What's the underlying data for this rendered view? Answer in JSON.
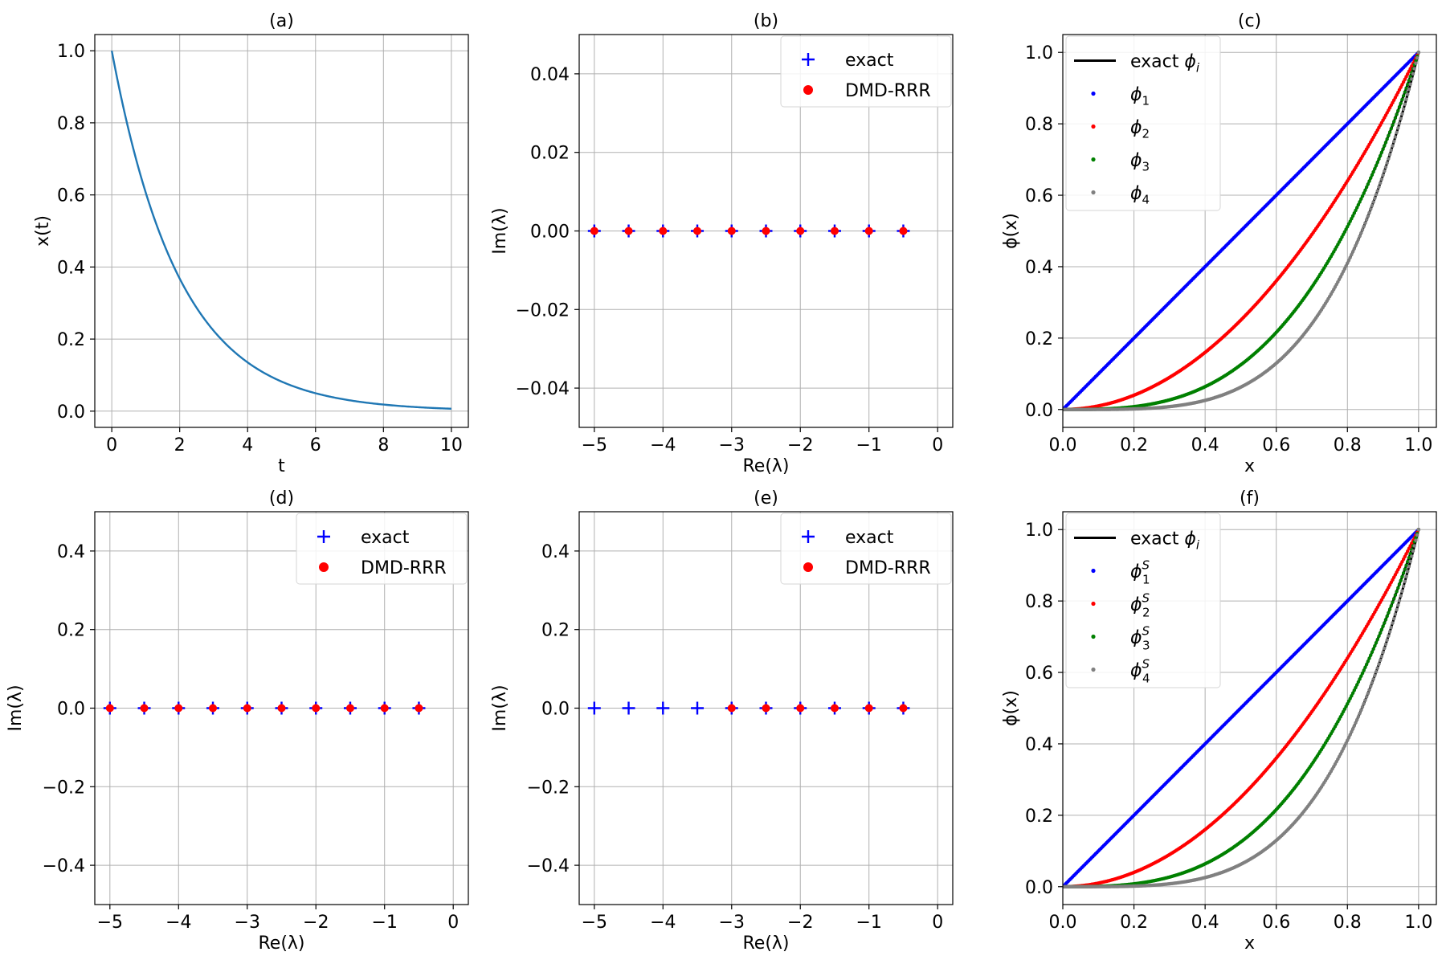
{
  "chart_data": [
    {
      "panel": "a",
      "type": "line",
      "title": "(a)",
      "xlabel": "t",
      "ylabel": "x(t)",
      "xlim": [
        -0.5,
        10.5
      ],
      "ylim": [
        -0.045,
        1.045
      ],
      "xticks": [
        0,
        2,
        4,
        6,
        8,
        10
      ],
      "xtick_labels": [
        "0",
        "2",
        "4",
        "6",
        "8",
        "10"
      ],
      "yticks": [
        0.0,
        0.2,
        0.4,
        0.6,
        0.8,
        1.0
      ],
      "ytick_labels": [
        "0.0",
        "0.2",
        "0.4",
        "0.6",
        "0.8",
        "1.0"
      ],
      "series": [
        {
          "name": "x(t)",
          "function": "exp(-t/2)",
          "x_range": [
            0,
            10
          ],
          "color": "#1f77b4"
        }
      ],
      "grid": true
    },
    {
      "panel": "b",
      "type": "scatter",
      "title": "(b)",
      "xlabel": "Re(λ)",
      "ylabel": "Im(λ)",
      "xlim": [
        -5.22,
        0.22
      ],
      "ylim": [
        -0.05,
        0.05
      ],
      "xticks": [
        -5,
        -4,
        -3,
        -2,
        -1,
        0
      ],
      "xtick_labels": [
        "−5",
        "−4",
        "−3",
        "−2",
        "−1",
        "0"
      ],
      "yticks": [
        -0.04,
        -0.02,
        0.0,
        0.02,
        0.04
      ],
      "ytick_labels": [
        "−0.04",
        "−0.02",
        "0.00",
        "0.02",
        "0.04"
      ],
      "series": [
        {
          "name": "exact",
          "marker": "plus",
          "color": "#0000ff",
          "x": [
            -5,
            -4.5,
            -4,
            -3.5,
            -3,
            -2.5,
            -2,
            -1.5,
            -1,
            -0.5
          ],
          "y": [
            0,
            0,
            0,
            0,
            0,
            0,
            0,
            0,
            0,
            0
          ]
        },
        {
          "name": "DMD-RRR",
          "marker": "dot",
          "color": "#ff0000",
          "x": [
            -5,
            -4.5,
            -4,
            -3.5,
            -3,
            -2.5,
            -2,
            -1.5,
            -1,
            -0.5
          ],
          "y": [
            0,
            0,
            0,
            0,
            0,
            0,
            0,
            0,
            0,
            0
          ]
        }
      ],
      "legend": [
        {
          "label": "exact",
          "marker": "plus",
          "color": "#0000ff"
        },
        {
          "label": "DMD-RRR",
          "marker": "dot",
          "color": "#ff0000"
        }
      ],
      "legend_position": "top-right",
      "grid": true
    },
    {
      "panel": "c",
      "type": "line",
      "title": "(c)",
      "xlabel": "x",
      "ylabel": "ϕ(x)",
      "xlim": [
        0.0,
        1.05
      ],
      "ylim": [
        -0.05,
        1.05
      ],
      "xticks": [
        0.0,
        0.2,
        0.4,
        0.6,
        0.8,
        1.0
      ],
      "xtick_labels": [
        "0.0",
        "0.2",
        "0.4",
        "0.6",
        "0.8",
        "1.0"
      ],
      "yticks": [
        0.0,
        0.2,
        0.4,
        0.6,
        0.8,
        1.0
      ],
      "ytick_labels": [
        "0.0",
        "0.2",
        "0.4",
        "0.6",
        "0.8",
        "1.0"
      ],
      "series": [
        {
          "name": "exact ϕ1",
          "function": "x",
          "color": "#000000",
          "style": "line"
        },
        {
          "name": "exact ϕ2",
          "function": "x^2",
          "color": "#000000",
          "style": "line"
        },
        {
          "name": "exact ϕ3",
          "function": "x^3",
          "color": "#000000",
          "style": "line"
        },
        {
          "name": "exact ϕ4",
          "function": "x^4",
          "color": "#000000",
          "style": "line"
        },
        {
          "name": "ϕ1",
          "function": "x",
          "color": "#0000ff",
          "style": "points"
        },
        {
          "name": "ϕ2",
          "function": "x^2",
          "color": "#ff0000",
          "style": "points"
        },
        {
          "name": "ϕ3",
          "function": "x^3",
          "color": "#008000",
          "style": "points"
        },
        {
          "name": "ϕ4",
          "function": "x^4",
          "color": "#808080",
          "style": "points"
        }
      ],
      "legend": [
        {
          "label": "exact ",
          "sym": "ϕ",
          "sub": "i",
          "sup": "",
          "marker": "line",
          "color": "#000000"
        },
        {
          "label": "",
          "sym": "ϕ",
          "sub": "1",
          "sup": "",
          "marker": "dot",
          "color": "#0000ff"
        },
        {
          "label": "",
          "sym": "ϕ",
          "sub": "2",
          "sup": "",
          "marker": "dot",
          "color": "#ff0000"
        },
        {
          "label": "",
          "sym": "ϕ",
          "sub": "3",
          "sup": "",
          "marker": "dot",
          "color": "#008000"
        },
        {
          "label": "",
          "sym": "ϕ",
          "sub": "4",
          "sup": "",
          "marker": "dot",
          "color": "#808080"
        }
      ],
      "legend_position": "top-left",
      "grid": true
    },
    {
      "panel": "d",
      "type": "scatter",
      "title": "(d)",
      "xlabel": "Re(λ)",
      "ylabel": "Im(λ)",
      "xlim": [
        -5.22,
        0.22
      ],
      "ylim": [
        -0.5,
        0.5
      ],
      "xticks": [
        -5,
        -4,
        -3,
        -2,
        -1,
        0
      ],
      "xtick_labels": [
        "−5",
        "−4",
        "−3",
        "−2",
        "−1",
        "0"
      ],
      "yticks": [
        -0.4,
        -0.2,
        0.0,
        0.2,
        0.4
      ],
      "ytick_labels": [
        "−0.4",
        "−0.2",
        "0.0",
        "0.2",
        "0.4"
      ],
      "series": [
        {
          "name": "exact",
          "marker": "plus",
          "color": "#0000ff",
          "x": [
            -5,
            -4.5,
            -4,
            -3.5,
            -3,
            -2.5,
            -2,
            -1.5,
            -1,
            -0.5
          ],
          "y": [
            0,
            0,
            0,
            0,
            0,
            0,
            0,
            0,
            0,
            0
          ]
        },
        {
          "name": "DMD-RRR",
          "marker": "dot",
          "color": "#ff0000",
          "x": [
            -5,
            -4.5,
            -4,
            -3.5,
            -3,
            -2.5,
            -2,
            -1.5,
            -1,
            -0.5
          ],
          "y": [
            0,
            0,
            0,
            0,
            0,
            0,
            0,
            0,
            0,
            0
          ]
        }
      ],
      "legend": [
        {
          "label": "exact",
          "marker": "plus",
          "color": "#0000ff"
        },
        {
          "label": "DMD-RRR",
          "marker": "dot",
          "color": "#ff0000"
        }
      ],
      "legend_position": "top-right",
      "grid": true
    },
    {
      "panel": "e",
      "type": "scatter",
      "title": "(e)",
      "xlabel": "Re(λ)",
      "ylabel": "Im(λ)",
      "xlim": [
        -5.22,
        0.22
      ],
      "ylim": [
        -0.5,
        0.5
      ],
      "xticks": [
        -5,
        -4,
        -3,
        -2,
        -1,
        0
      ],
      "xtick_labels": [
        "−5",
        "−4",
        "−3",
        "−2",
        "−1",
        "0"
      ],
      "yticks": [
        -0.4,
        -0.2,
        0.0,
        0.2,
        0.4
      ],
      "ytick_labels": [
        "−0.4",
        "−0.2",
        "0.0",
        "0.2",
        "0.4"
      ],
      "series": [
        {
          "name": "exact",
          "marker": "plus",
          "color": "#0000ff",
          "x": [
            -5,
            -4.5,
            -4,
            -3.5,
            -3,
            -2.5,
            -2,
            -1.5,
            -1,
            -0.5
          ],
          "y": [
            0,
            0,
            0,
            0,
            0,
            0,
            0,
            0,
            0,
            0
          ]
        },
        {
          "name": "DMD-RRR",
          "marker": "dot",
          "color": "#ff0000",
          "x": [
            -3,
            -2.5,
            -2,
            -1.5,
            -1,
            -0.5
          ],
          "y": [
            0,
            0,
            0,
            0,
            0,
            0
          ]
        }
      ],
      "legend": [
        {
          "label": "exact",
          "marker": "plus",
          "color": "#0000ff"
        },
        {
          "label": "DMD-RRR",
          "marker": "dot",
          "color": "#ff0000"
        }
      ],
      "legend_position": "top-right",
      "grid": true
    },
    {
      "panel": "f",
      "type": "line",
      "title": "(f)",
      "xlabel": "x",
      "ylabel": "ϕ(x)",
      "xlim": [
        0.0,
        1.05
      ],
      "ylim": [
        -0.05,
        1.05
      ],
      "xticks": [
        0.0,
        0.2,
        0.4,
        0.6,
        0.8,
        1.0
      ],
      "xtick_labels": [
        "0.0",
        "0.2",
        "0.4",
        "0.6",
        "0.8",
        "1.0"
      ],
      "yticks": [
        0.0,
        0.2,
        0.4,
        0.6,
        0.8,
        1.0
      ],
      "ytick_labels": [
        "0.0",
        "0.2",
        "0.4",
        "0.6",
        "0.8",
        "1.0"
      ],
      "series": [
        {
          "name": "exact ϕ1",
          "function": "x",
          "color": "#000000",
          "style": "line"
        },
        {
          "name": "exact ϕ2",
          "function": "x^2",
          "color": "#000000",
          "style": "line"
        },
        {
          "name": "exact ϕ3",
          "function": "x^3",
          "color": "#000000",
          "style": "line"
        },
        {
          "name": "exact ϕ4",
          "function": "x^4",
          "color": "#000000",
          "style": "line"
        },
        {
          "name": "ϕ1^S",
          "function": "x",
          "color": "#0000ff",
          "style": "points"
        },
        {
          "name": "ϕ2^S",
          "function": "x^2",
          "color": "#ff0000",
          "style": "points"
        },
        {
          "name": "ϕ3^S",
          "function": "x^3",
          "color": "#008000",
          "style": "points"
        },
        {
          "name": "ϕ4^S",
          "function": "x^4",
          "color": "#808080",
          "style": "points"
        }
      ],
      "legend": [
        {
          "label": "exact ",
          "sym": "ϕ",
          "sub": "i",
          "sup": "",
          "marker": "line",
          "color": "#000000"
        },
        {
          "label": "",
          "sym": "ϕ",
          "sub": "1",
          "sup": "S",
          "marker": "dot",
          "color": "#0000ff"
        },
        {
          "label": "",
          "sym": "ϕ",
          "sub": "2",
          "sup": "S",
          "marker": "dot",
          "color": "#ff0000"
        },
        {
          "label": "",
          "sym": "ϕ",
          "sub": "3",
          "sup": "S",
          "marker": "dot",
          "color": "#008000"
        },
        {
          "label": "",
          "sym": "ϕ",
          "sub": "4",
          "sup": "S",
          "marker": "dot",
          "color": "#808080"
        }
      ],
      "legend_position": "top-left",
      "grid": true
    }
  ]
}
